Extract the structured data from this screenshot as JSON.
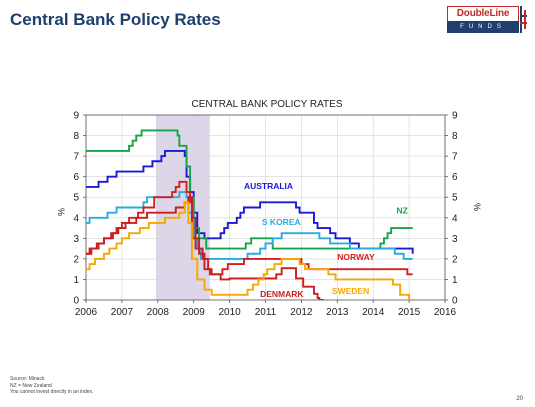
{
  "page": {
    "title": "Central Bank Policy Rates",
    "logo": {
      "brand": "DoubleLine",
      "sub": "FUNDS",
      "colors": {
        "red": "#c62828",
        "navy": "#1f3f6e"
      }
    },
    "footnotes": [
      "Source: Minack",
      "NZ = New Zealand",
      "You cannot invest directly in an index."
    ],
    "page_number": "20"
  },
  "chart_data": {
    "type": "line",
    "title": "CENTRAL BANK POLICY RATES",
    "xlabel": "",
    "ylabel_left": "%",
    "ylabel_right": "%",
    "xlim": [
      2006,
      2016
    ],
    "ylim": [
      0,
      9
    ],
    "x_ticks": [
      "2006",
      "2007",
      "2008",
      "2009",
      "2010",
      "2011",
      "2012",
      "2013",
      "2014",
      "2015",
      "2016"
    ],
    "y_ticks": [
      "0",
      "1",
      "2",
      "3",
      "4",
      "5",
      "6",
      "7",
      "8",
      "9"
    ],
    "grid": true,
    "shaded_region": {
      "x": [
        2007.95,
        2009.45
      ],
      "color": "#ddd6e8"
    },
    "series": [
      {
        "name": "AUSTRALIA",
        "color": "#1a1ad6",
        "label_pos": [
          2010.4,
          5.4
        ],
        "points": [
          [
            2006.0,
            5.5
          ],
          [
            2006.35,
            5.75
          ],
          [
            2006.6,
            6.0
          ],
          [
            2006.85,
            6.25
          ],
          [
            2007.6,
            6.5
          ],
          [
            2007.85,
            6.75
          ],
          [
            2008.1,
            7.0
          ],
          [
            2008.2,
            7.25
          ],
          [
            2008.75,
            7.0
          ],
          [
            2008.8,
            6.0
          ],
          [
            2008.9,
            5.25
          ],
          [
            2009.0,
            4.25
          ],
          [
            2009.1,
            3.25
          ],
          [
            2009.3,
            3.0
          ],
          [
            2009.75,
            3.25
          ],
          [
            2009.85,
            3.5
          ],
          [
            2009.95,
            3.75
          ],
          [
            2010.2,
            4.0
          ],
          [
            2010.3,
            4.25
          ],
          [
            2010.4,
            4.5
          ],
          [
            2010.85,
            4.75
          ],
          [
            2011.85,
            4.5
          ],
          [
            2011.95,
            4.25
          ],
          [
            2012.35,
            3.75
          ],
          [
            2012.45,
            3.5
          ],
          [
            2012.8,
            3.25
          ],
          [
            2012.95,
            3.0
          ],
          [
            2013.35,
            2.75
          ],
          [
            2013.6,
            2.5
          ],
          [
            2015.1,
            2.25
          ],
          [
            2015.1,
            2.5
          ]
        ],
        "end_x": 2015.1
      },
      {
        "name": "NZ",
        "color": "#16a34a",
        "label_pos": [
          2014.65,
          4.2
        ],
        "points": [
          [
            2006.0,
            7.25
          ],
          [
            2007.2,
            7.5
          ],
          [
            2007.3,
            7.75
          ],
          [
            2007.4,
            8.0
          ],
          [
            2007.55,
            8.25
          ],
          [
            2008.55,
            8.0
          ],
          [
            2008.6,
            7.5
          ],
          [
            2008.8,
            6.5
          ],
          [
            2008.9,
            5.0
          ],
          [
            2009.0,
            3.5
          ],
          [
            2009.15,
            3.0
          ],
          [
            2009.35,
            2.5
          ],
          [
            2010.45,
            2.75
          ],
          [
            2010.6,
            3.0
          ],
          [
            2011.2,
            2.5
          ],
          [
            2014.2,
            2.75
          ],
          [
            2014.3,
            3.0
          ],
          [
            2014.4,
            3.25
          ],
          [
            2014.5,
            3.5
          ],
          [
            2015.1,
            3.5
          ]
        ],
        "end_x": 2015.1
      },
      {
        "name": "S KOREA",
        "color": "#29abe2",
        "label_pos": [
          2010.9,
          3.65
        ],
        "points": [
          [
            2006.0,
            3.75
          ],
          [
            2006.1,
            4.0
          ],
          [
            2006.6,
            4.25
          ],
          [
            2006.85,
            4.5
          ],
          [
            2007.6,
            4.75
          ],
          [
            2007.7,
            5.0
          ],
          [
            2008.6,
            5.25
          ],
          [
            2008.8,
            5.0
          ],
          [
            2008.85,
            4.25
          ],
          [
            2008.95,
            4.0
          ],
          [
            2009.0,
            3.0
          ],
          [
            2009.1,
            2.5
          ],
          [
            2009.2,
            2.0
          ],
          [
            2010.5,
            2.25
          ],
          [
            2010.85,
            2.5
          ],
          [
            2011.0,
            2.75
          ],
          [
            2011.2,
            3.0
          ],
          [
            2011.45,
            3.25
          ],
          [
            2012.5,
            3.0
          ],
          [
            2012.8,
            2.75
          ],
          [
            2013.35,
            2.5
          ],
          [
            2014.6,
            2.25
          ],
          [
            2014.85,
            2.0
          ],
          [
            2015.1,
            2.0
          ]
        ],
        "end_x": 2015.1
      },
      {
        "name": "NORWAY",
        "color": "#d31f1f",
        "label_pos": [
          2013.0,
          1.95
        ],
        "points": [
          [
            2006.0,
            2.25
          ],
          [
            2006.15,
            2.5
          ],
          [
            2006.35,
            2.75
          ],
          [
            2006.5,
            3.0
          ],
          [
            2006.7,
            3.25
          ],
          [
            2006.85,
            3.5
          ],
          [
            2007.0,
            3.75
          ],
          [
            2007.2,
            4.0
          ],
          [
            2007.45,
            4.25
          ],
          [
            2007.6,
            4.5
          ],
          [
            2007.9,
            5.0
          ],
          [
            2008.4,
            5.25
          ],
          [
            2008.5,
            5.5
          ],
          [
            2008.6,
            5.75
          ],
          [
            2008.8,
            5.25
          ],
          [
            2008.9,
            4.75
          ],
          [
            2008.95,
            3.0
          ],
          [
            2009.05,
            2.5
          ],
          [
            2009.25,
            2.0
          ],
          [
            2009.4,
            1.5
          ],
          [
            2009.45,
            1.25
          ],
          [
            2009.8,
            1.5
          ],
          [
            2009.95,
            1.75
          ],
          [
            2010.4,
            2.0
          ],
          [
            2012.0,
            1.75
          ],
          [
            2012.2,
            1.5
          ],
          [
            2014.95,
            1.25
          ],
          [
            2015.1,
            1.25
          ]
        ],
        "end_x": 2015.1
      },
      {
        "name": "DENMARK",
        "color": "#c81e1e",
        "label_pos": [
          2010.85,
          0.15
        ],
        "points": [
          [
            2006.0,
            2.25
          ],
          [
            2006.1,
            2.5
          ],
          [
            2006.3,
            2.75
          ],
          [
            2006.5,
            3.0
          ],
          [
            2006.75,
            3.25
          ],
          [
            2006.9,
            3.5
          ],
          [
            2007.1,
            3.75
          ],
          [
            2007.4,
            4.0
          ],
          [
            2007.7,
            4.25
          ],
          [
            2008.5,
            4.5
          ],
          [
            2008.75,
            4.75
          ],
          [
            2008.85,
            5.0
          ],
          [
            2008.95,
            4.0
          ],
          [
            2009.05,
            3.0
          ],
          [
            2009.15,
            2.25
          ],
          [
            2009.3,
            1.5
          ],
          [
            2009.5,
            1.25
          ],
          [
            2009.75,
            1.0
          ],
          [
            2010.0,
            1.05
          ],
          [
            2011.3,
            1.25
          ],
          [
            2011.45,
            1.55
          ],
          [
            2011.85,
            1.05
          ],
          [
            2012.05,
            0.65
          ],
          [
            2012.35,
            0.3
          ],
          [
            2012.45,
            0.1
          ],
          [
            2012.5,
            0.0
          ],
          [
            2012.6,
            0.05
          ]
        ],
        "end_x": 2012.6
      },
      {
        "name": "SWEDEN",
        "color": "#f5a800",
        "label_pos": [
          2012.85,
          0.3
        ],
        "points": [
          [
            2006.0,
            1.5
          ],
          [
            2006.1,
            1.75
          ],
          [
            2006.25,
            2.0
          ],
          [
            2006.5,
            2.25
          ],
          [
            2006.65,
            2.5
          ],
          [
            2006.85,
            2.75
          ],
          [
            2007.0,
            3.0
          ],
          [
            2007.2,
            3.25
          ],
          [
            2007.5,
            3.5
          ],
          [
            2007.75,
            3.75
          ],
          [
            2008.2,
            4.0
          ],
          [
            2008.6,
            4.25
          ],
          [
            2008.75,
            4.75
          ],
          [
            2008.85,
            3.75
          ],
          [
            2008.95,
            2.0
          ],
          [
            2009.1,
            1.0
          ],
          [
            2009.3,
            0.5
          ],
          [
            2009.5,
            0.25
          ],
          [
            2010.5,
            0.5
          ],
          [
            2010.65,
            0.75
          ],
          [
            2010.8,
            1.0
          ],
          [
            2010.95,
            1.25
          ],
          [
            2011.05,
            1.5
          ],
          [
            2011.25,
            1.75
          ],
          [
            2011.45,
            2.0
          ],
          [
            2011.95,
            1.75
          ],
          [
            2012.1,
            1.5
          ],
          [
            2012.75,
            1.25
          ],
          [
            2012.95,
            1.0
          ],
          [
            2014.55,
            0.75
          ],
          [
            2014.75,
            0.25
          ],
          [
            2015.0,
            0.0
          ],
          [
            2015.1,
            0.0
          ]
        ],
        "end_x": 2015.1
      }
    ]
  }
}
